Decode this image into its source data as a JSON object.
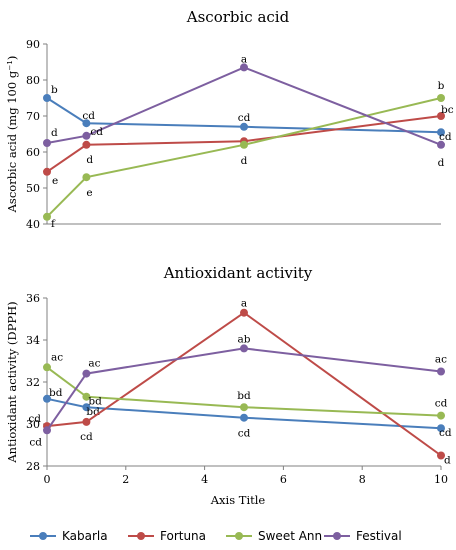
{
  "colors": {
    "Kabarla": "#4a7ebb",
    "Fortuna": "#be4b48",
    "Sweet Ann": "#98b954",
    "Festival": "#7d5fa0"
  },
  "legend": {
    "position": "bottom",
    "items": [
      "Kabarla",
      "Fortuna",
      "Sweet Ann",
      "Festival"
    ]
  },
  "chart_data": [
    {
      "type": "line",
      "title": "Ascorbic acid",
      "ylabel": "Ascorbic acid (mg 100 g⁻¹)",
      "xlabel": "",
      "ylim": [
        40,
        90
      ],
      "yticks": [
        40,
        50,
        60,
        70,
        80,
        90
      ],
      "xlim": [
        0,
        10
      ],
      "x": [
        0,
        1,
        5,
        10
      ],
      "series": [
        {
          "name": "Kabarla",
          "values": [
            75.0,
            68.0,
            67.0,
            65.5
          ],
          "labels": [
            "b",
            "cd",
            "cd",
            "cd"
          ]
        },
        {
          "name": "Fortuna",
          "values": [
            54.5,
            62.0,
            63.0,
            70.0
          ],
          "labels": [
            "e",
            "d",
            "",
            "bc"
          ]
        },
        {
          "name": "Sweet Ann",
          "values": [
            42.0,
            53.0,
            62.0,
            75.0
          ],
          "labels": [
            "f",
            "e",
            "d",
            "b"
          ]
        },
        {
          "name": "Festival",
          "values": [
            62.5,
            64.5,
            83.5,
            62.0
          ],
          "labels": [
            "d",
            "cd",
            "a",
            "d"
          ]
        }
      ]
    },
    {
      "type": "line",
      "title": "Antioxidant activity",
      "ylabel": "Antioxidant activity (DPPH)",
      "xlabel": "Axis Title",
      "ylim": [
        28,
        36
      ],
      "yticks": [
        28,
        30,
        32,
        34,
        36
      ],
      "xlim": [
        0,
        10
      ],
      "xticks": [
        0,
        2,
        4,
        6,
        8,
        10
      ],
      "x": [
        0,
        1,
        5,
        10
      ],
      "series": [
        {
          "name": "Kabarla",
          "values": [
            31.2,
            30.8,
            30.3,
            29.8
          ],
          "labels": [
            "bd",
            "bd",
            "cd",
            "cd"
          ]
        },
        {
          "name": "Fortuna",
          "values": [
            29.9,
            30.1,
            35.3,
            28.5
          ],
          "labels": [
            "cd",
            "cd",
            "a",
            "d"
          ]
        },
        {
          "name": "Sweet Ann",
          "values": [
            32.7,
            31.3,
            30.8,
            30.4
          ],
          "labels": [
            "ac",
            "bd",
            "bd",
            "cd"
          ]
        },
        {
          "name": "Festival",
          "values": [
            29.7,
            32.4,
            33.6,
            32.5
          ],
          "labels": [
            "cd",
            "ac",
            "ab",
            "ac"
          ]
        }
      ]
    }
  ]
}
